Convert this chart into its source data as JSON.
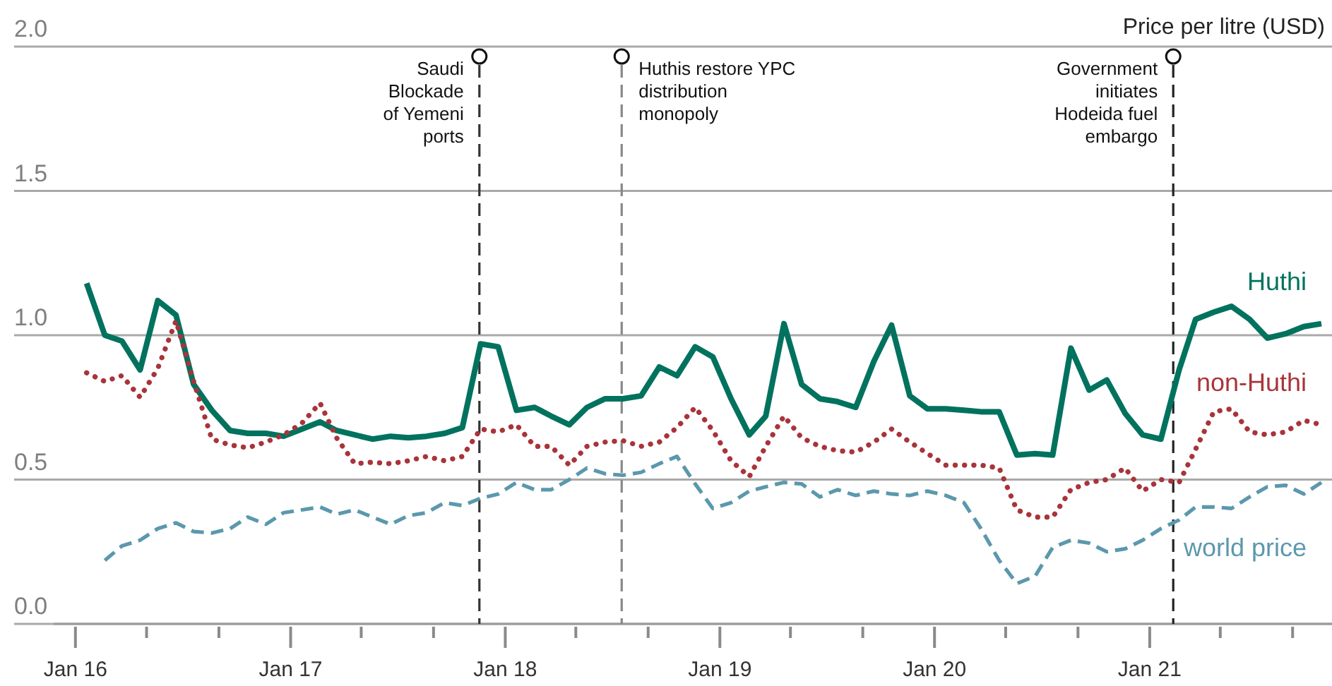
{
  "chart_data": {
    "type": "line",
    "ylabel": "Price per litre (USD)",
    "x": [
      "2016-01-20",
      "2016-02-20",
      "2016-03-20",
      "2016-04-20",
      "2016-05-20",
      "2016-06-20",
      "2016-07-20",
      "2016-08-20",
      "2016-09-20",
      "2016-10-20",
      "2016-11-20",
      "2016-12-20",
      "2017-01-20",
      "2017-02-20",
      "2017-03-20",
      "2017-04-20",
      "2017-05-20",
      "2017-06-20",
      "2017-07-20",
      "2017-08-20",
      "2017-09-20",
      "2017-10-20",
      "2017-11-20",
      "2017-12-20",
      "2018-01-20",
      "2018-02-20",
      "2018-03-20",
      "2018-04-20",
      "2018-05-20",
      "2018-06-20",
      "2018-07-20",
      "2018-08-20",
      "2018-09-20",
      "2018-10-20",
      "2018-11-20",
      "2018-12-20",
      "2019-01-20",
      "2019-02-20",
      "2019-03-20",
      "2019-04-20",
      "2019-05-20",
      "2019-06-20",
      "2019-07-20",
      "2019-08-20",
      "2019-09-20",
      "2019-10-20",
      "2019-11-20",
      "2019-12-20",
      "2020-01-20",
      "2020-02-20",
      "2020-03-20",
      "2020-04-20",
      "2020-05-20",
      "2020-06-20",
      "2020-07-20",
      "2020-08-20",
      "2020-09-20",
      "2020-10-20",
      "2020-11-20",
      "2020-12-20",
      "2021-01-20",
      "2021-02-20",
      "2021-03-20",
      "2021-04-20",
      "2021-05-20",
      "2021-06-20",
      "2021-07-20",
      "2021-08-20",
      "2021-09-20",
      "2021-10-20"
    ],
    "series": [
      {
        "name": "Huthi",
        "color": "#00725e",
        "line_style": "solid",
        "values": [
          1.18,
          1.0,
          0.98,
          0.88,
          1.12,
          1.07,
          0.83,
          0.74,
          0.67,
          0.66,
          0.66,
          0.65,
          0.675,
          0.7,
          0.67,
          0.655,
          0.64,
          0.65,
          0.645,
          0.65,
          0.66,
          0.68,
          0.97,
          0.96,
          0.74,
          0.75,
          0.72,
          0.69,
          0.75,
          0.78,
          0.78,
          0.79,
          0.89,
          0.86,
          0.96,
          0.925,
          0.78,
          0.655,
          0.72,
          1.04,
          0.83,
          0.78,
          0.77,
          0.75,
          0.91,
          1.035,
          0.79,
          0.745,
          0.745,
          0.74,
          0.735,
          0.735,
          0.585,
          0.59,
          0.585,
          0.955,
          0.81,
          0.845,
          0.73,
          0.655,
          0.64,
          0.88,
          1.055,
          1.08,
          1.1,
          1.055,
          0.99,
          1.005,
          1.03,
          1.04
        ]
      },
      {
        "name": "non-Huthi",
        "color": "#a8343a",
        "line_style": "dotted",
        "values": [
          0.87,
          0.84,
          0.86,
          0.785,
          0.885,
          1.05,
          0.84,
          0.64,
          0.62,
          0.61,
          0.63,
          0.655,
          0.695,
          0.765,
          0.645,
          0.555,
          0.56,
          0.555,
          0.565,
          0.58,
          0.565,
          0.58,
          0.675,
          0.665,
          0.69,
          0.615,
          0.615,
          0.55,
          0.615,
          0.63,
          0.635,
          0.615,
          0.63,
          0.68,
          0.75,
          0.67,
          0.565,
          0.51,
          0.615,
          0.72,
          0.645,
          0.615,
          0.6,
          0.595,
          0.63,
          0.675,
          0.63,
          0.59,
          0.55,
          0.55,
          0.55,
          0.54,
          0.395,
          0.37,
          0.37,
          0.465,
          0.49,
          0.5,
          0.54,
          0.46,
          0.5,
          0.49,
          0.605,
          0.735,
          0.745,
          0.665,
          0.655,
          0.665,
          0.705,
          0.69
        ]
      },
      {
        "name": "world price",
        "color": "#5b98ad",
        "line_style": "dashed",
        "values": [
          null,
          0.22,
          0.27,
          0.29,
          0.33,
          0.35,
          0.32,
          0.315,
          0.33,
          0.37,
          0.345,
          0.385,
          0.395,
          0.405,
          0.38,
          0.395,
          0.37,
          0.345,
          0.375,
          0.385,
          0.42,
          0.41,
          0.435,
          0.45,
          0.49,
          0.465,
          0.465,
          0.5,
          0.54,
          0.52,
          0.515,
          0.525,
          0.555,
          0.58,
          0.485,
          0.4,
          0.42,
          0.46,
          0.475,
          0.49,
          0.485,
          0.44,
          0.465,
          0.445,
          0.46,
          0.45,
          0.445,
          0.46,
          0.445,
          0.42,
          0.33,
          0.22,
          0.14,
          0.165,
          0.265,
          0.29,
          0.28,
          0.25,
          0.26,
          0.29,
          0.33,
          0.36,
          0.405,
          0.405,
          0.4,
          0.44,
          0.475,
          0.48,
          0.45,
          0.49
        ]
      }
    ],
    "xlim": [
      "2015-11-25",
      "2021-11-07"
    ],
    "xticks": [
      {
        "value": "2016-01",
        "label": "Jan 16"
      },
      {
        "value": "2016-05",
        "label": null
      },
      {
        "value": "2016-09",
        "label": null
      },
      {
        "value": "2017-01",
        "label": "Jan 17"
      },
      {
        "value": "2017-05",
        "label": null
      },
      {
        "value": "2017-09",
        "label": null
      },
      {
        "value": "2018-01",
        "label": "Jan 18"
      },
      {
        "value": "2018-05",
        "label": null
      },
      {
        "value": "2018-09",
        "label": null
      },
      {
        "value": "2019-01",
        "label": "Jan 19"
      },
      {
        "value": "2019-05",
        "label": null
      },
      {
        "value": "2019-09",
        "label": null
      },
      {
        "value": "2020-01",
        "label": "Jan 20"
      },
      {
        "value": "2020-05",
        "label": null
      },
      {
        "value": "2020-09",
        "label": null
      },
      {
        "value": "2021-01",
        "label": "Jan 21"
      },
      {
        "value": "2021-05",
        "label": null
      },
      {
        "value": "2021-09",
        "label": null
      }
    ],
    "ylim": [
      0,
      2
    ],
    "yticks": [
      {
        "value": 0,
        "label": "0.0"
      },
      0.5,
      {
        "value": 1,
        "label": "1.0"
      },
      1.5,
      {
        "value": 2,
        "label": "2.0"
      }
    ],
    "grid": "y",
    "ref_lines": [
      {
        "axis": "x",
        "value": "2017-11-18",
        "label": "Saudi\nBlockade\nof Yemeni\nports",
        "color": "#333333",
        "line_style": "dashed"
      },
      {
        "axis": "x",
        "value": "2018-07-18",
        "label": "Huthis restore YPC\ndistribution\nmonopoly",
        "color": "#888888",
        "line_style": "dashed"
      },
      {
        "axis": "x",
        "value": "2021-02-10",
        "label": "Government\ninitiates\nHodeida fuel\nembargo",
        "color": "#222222",
        "line_style": "dashed"
      }
    ]
  }
}
